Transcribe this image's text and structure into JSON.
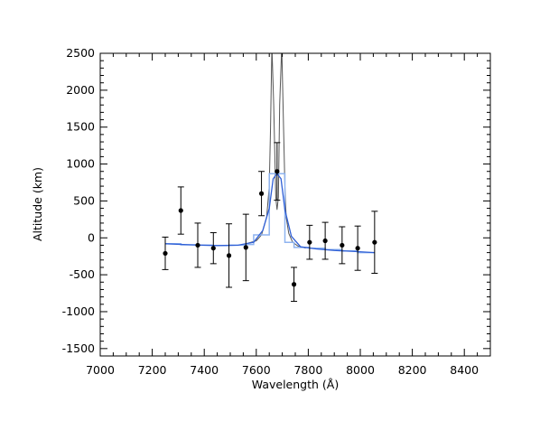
{
  "chart_data": {
    "type": "scatter",
    "title": "",
    "xlabel": "Wavelength (Å)",
    "ylabel": "Altitude (km)",
    "xlim": [
      7000,
      8500
    ],
    "ylim": [
      -1600,
      2500
    ],
    "xticks": [
      7000,
      7200,
      7400,
      7600,
      7800,
      8000,
      8200,
      8400
    ],
    "yticks": [
      -1500,
      -1000,
      -500,
      0,
      500,
      1000,
      1500,
      2000,
      2500
    ],
    "grid": false,
    "legend": "none",
    "colors": {
      "points": "#000000",
      "model_curve": "#2f5fd6",
      "binned_model": "#8fb4f0",
      "high_res_model": "#555555"
    },
    "series": [
      {
        "kind": "points_with_errorbars",
        "x": [
          7250,
          7310,
          7375,
          7435,
          7495,
          7560,
          7620,
          7680,
          7745,
          7805,
          7865,
          7930,
          7990,
          8055
        ],
        "y": [
          -210,
          370,
          -100,
          -140,
          -240,
          -130,
          600,
          900,
          -630,
          -60,
          -40,
          -100,
          -140,
          -60
        ],
        "yerr": [
          220,
          320,
          300,
          210,
          430,
          450,
          300,
          390,
          230,
          230,
          250,
          250,
          300,
          420
        ]
      },
      {
        "kind": "smooth_model",
        "x": [
          7250,
          7350,
          7450,
          7530,
          7590,
          7625,
          7650,
          7665,
          7680,
          7695,
          7710,
          7735,
          7770,
          7830,
          7900,
          7980,
          8055
        ],
        "y": [
          -80,
          -95,
          -105,
          -100,
          -60,
          100,
          400,
          800,
          870,
          800,
          380,
          20,
          -120,
          -150,
          -170,
          -185,
          -200
        ]
      },
      {
        "kind": "binned_model_steps",
        "edges": [
          7250,
          7310,
          7375,
          7435,
          7495,
          7560,
          7590,
          7650,
          7710,
          7745,
          7805,
          7865,
          7930,
          7990,
          8055
        ],
        "y": [
          -80,
          -95,
          -100,
          -105,
          -100,
          -90,
          40,
          870,
          -60,
          -130,
          -140,
          -160,
          -175,
          -200
        ]
      },
      {
        "kind": "high_resolution_model",
        "x": [
          7560,
          7600,
          7620,
          7640,
          7650,
          7655,
          7660,
          7667,
          7675,
          7680,
          7685,
          7690,
          7698,
          7705,
          7710,
          7715,
          7725,
          7740,
          7760,
          7790
        ],
        "y": [
          -80,
          -40,
          40,
          280,
          700,
          1500,
          2600,
          1800,
          550,
          380,
          550,
          1800,
          2600,
          1500,
          700,
          280,
          60,
          -60,
          -110,
          -140
        ]
      }
    ]
  }
}
